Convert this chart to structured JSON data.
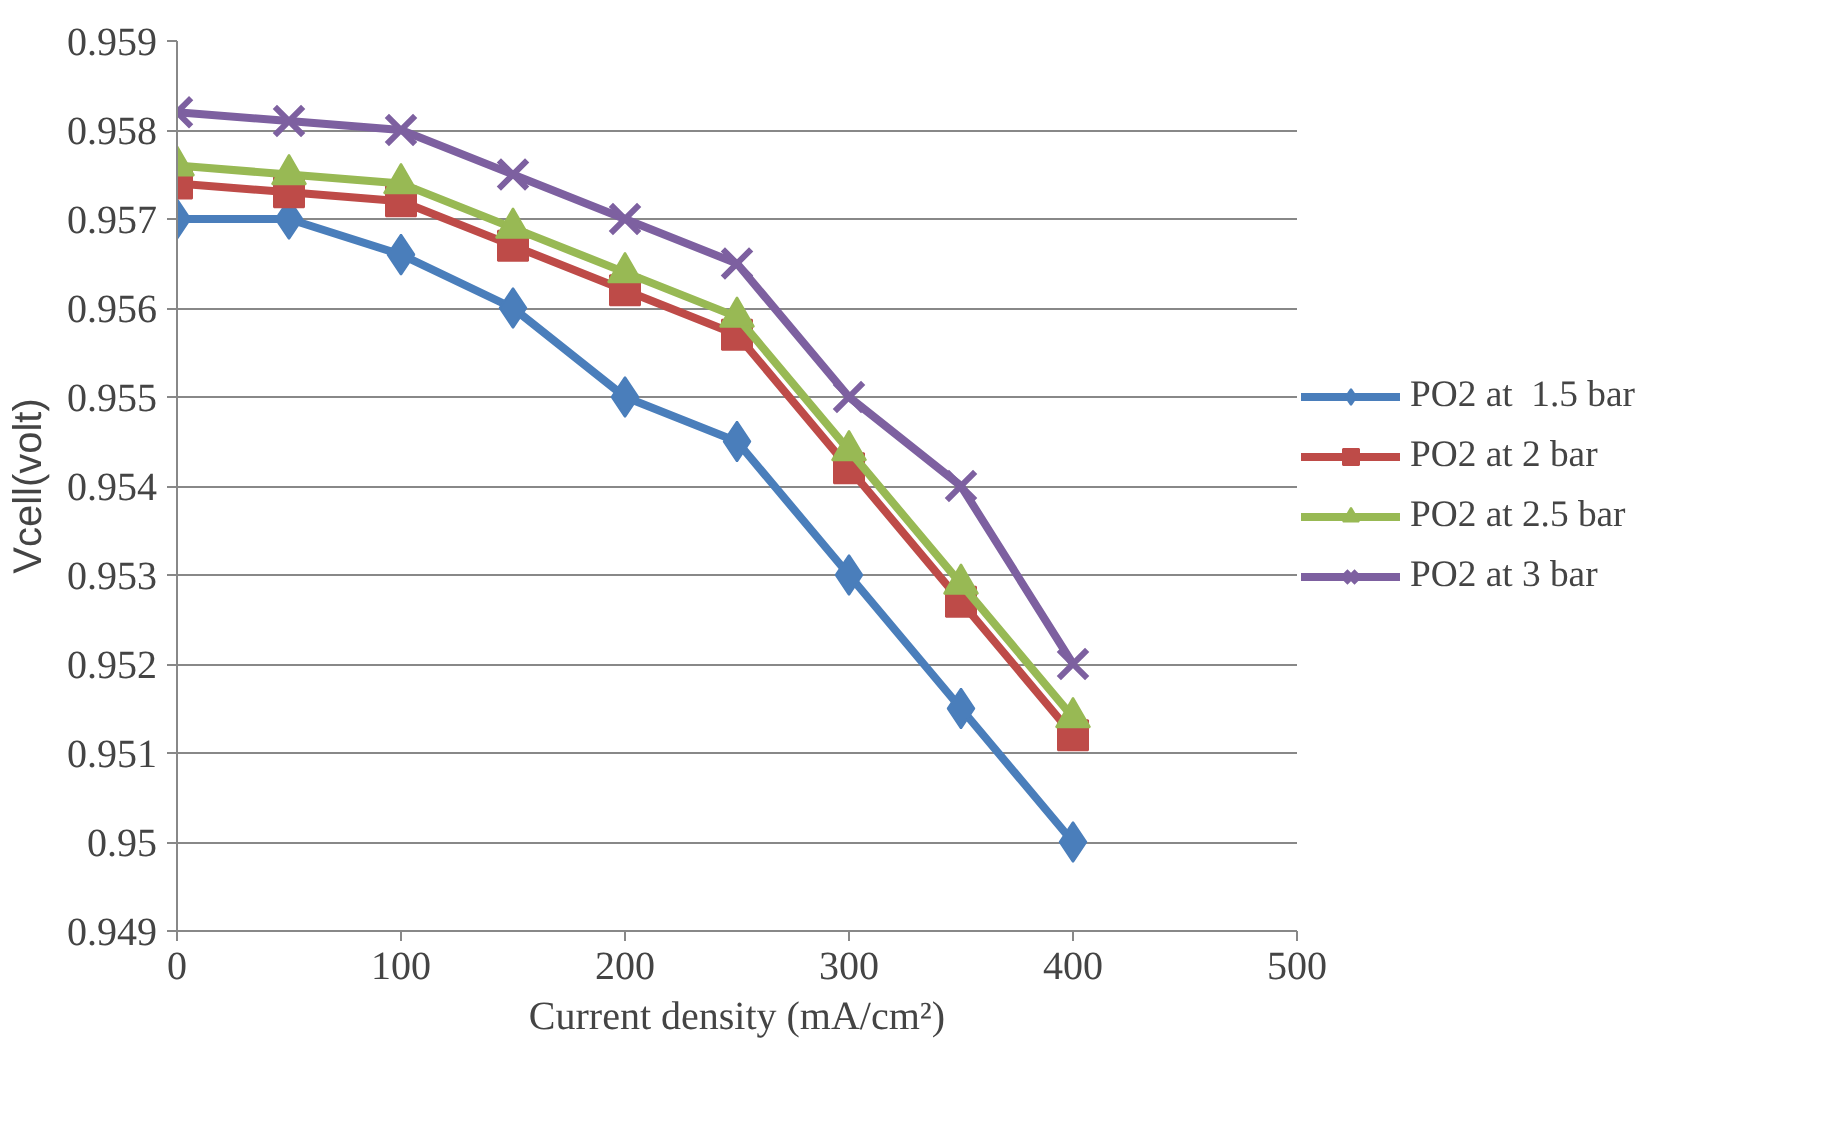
{
  "chart_data": {
    "type": "line",
    "xlabel": "Current density (mA/cm²)",
    "ylabel": "Vcell(volt)",
    "x": [
      0,
      50,
      100,
      150,
      200,
      250,
      300,
      350,
      400
    ],
    "series": [
      {
        "name": "PO2 at  1.5 bar",
        "color": "#4a7ebb",
        "marker": "diamond",
        "values": [
          0.957,
          0.957,
          0.9566,
          0.956,
          0.955,
          0.9545,
          0.953,
          0.9515,
          0.95
        ]
      },
      {
        "name": "PO2 at 2 bar",
        "color": "#be4b48",
        "marker": "square",
        "values": [
          0.9574,
          0.9573,
          0.9572,
          0.9567,
          0.9562,
          0.9557,
          0.9542,
          0.9527,
          0.9512
        ]
      },
      {
        "name": "PO2 at 2.5 bar",
        "color": "#98b954",
        "marker": "triangle",
        "values": [
          0.9576,
          0.9575,
          0.9574,
          0.9569,
          0.9564,
          0.9559,
          0.9544,
          0.9529,
          0.9514
        ]
      },
      {
        "name": "PO2 at 3 bar",
        "color": "#7d60a0",
        "marker": "cross",
        "values": [
          0.9582,
          0.9581,
          0.958,
          0.9575,
          0.957,
          0.9565,
          0.955,
          0.954,
          0.952
        ]
      }
    ],
    "xlim": [
      0,
      500
    ],
    "xticks": [
      0,
      100,
      200,
      300,
      400,
      500
    ],
    "ylim": [
      0.949,
      0.959
    ],
    "yticks": [
      0.949,
      0.95,
      0.951,
      0.952,
      0.953,
      0.954,
      0.955,
      0.956,
      0.957,
      0.958,
      0.959
    ],
    "grid": "y",
    "legend": "right"
  }
}
